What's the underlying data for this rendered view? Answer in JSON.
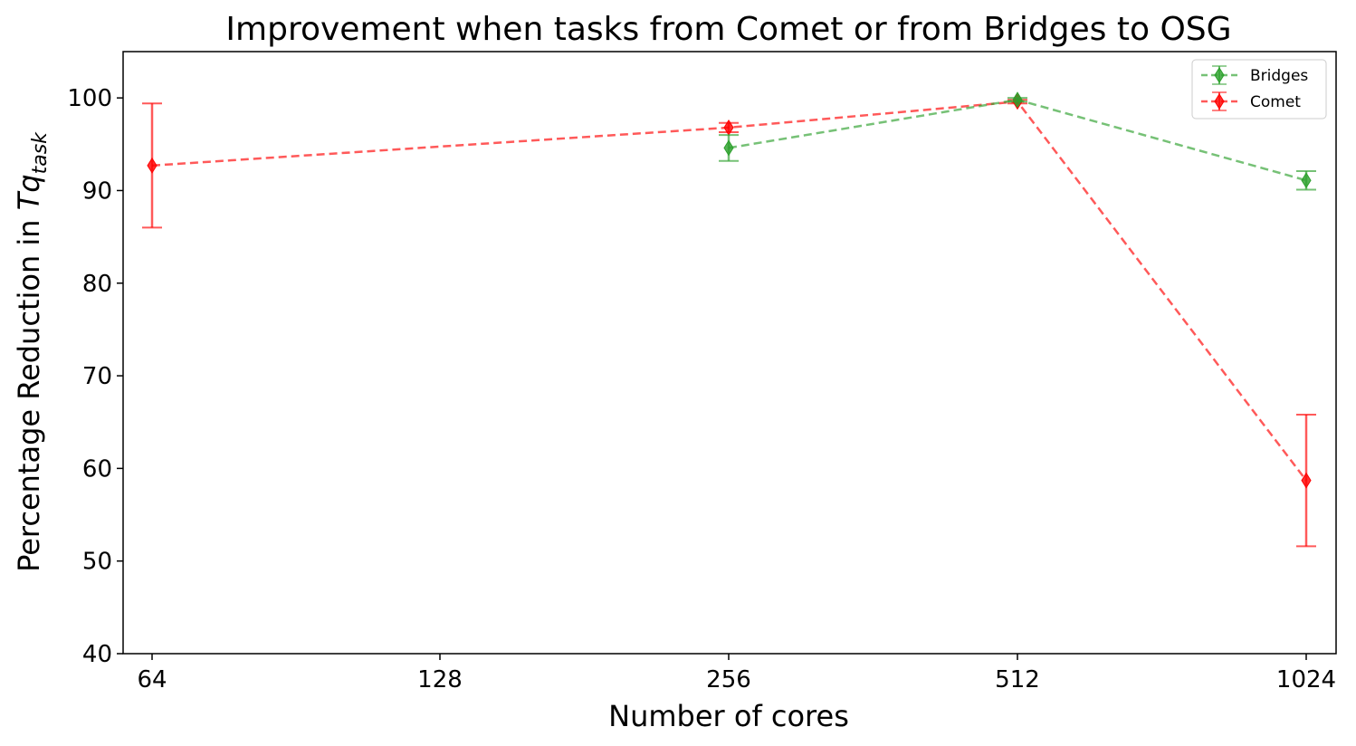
{
  "chart_data": {
    "type": "line",
    "title": "Improvement when tasks from Comet or from Bridges to OSG",
    "xlabel": "Number of cores",
    "ylabel_main": "Percentage Reduction in ",
    "ylabel_math": "Tq",
    "ylabel_sub": "task",
    "x_categories": [
      "64",
      "128",
      "256",
      "512",
      "1024"
    ],
    "ylim": [
      40,
      105
    ],
    "yticks": [
      40,
      50,
      60,
      70,
      80,
      90,
      100
    ],
    "grid": false,
    "legend_position": "top-right",
    "series": [
      {
        "name": "Bridges",
        "color": "#2ca02c",
        "line_style": "dashed",
        "marker": "thin-diamond",
        "points": [
          {
            "x": "256",
            "y": 94.6,
            "err": 1.4
          },
          {
            "x": "512",
            "y": 99.8,
            "err": 0.2
          },
          {
            "x": "1024",
            "y": 91.1,
            "err": 1.0
          }
        ]
      },
      {
        "name": "Comet",
        "color": "#ff0000",
        "line_style": "dashed",
        "marker": "thin-diamond",
        "points": [
          {
            "x": "64",
            "y": 92.7,
            "err": 6.7
          },
          {
            "x": "256",
            "y": 96.8,
            "err": 0.5
          },
          {
            "x": "512",
            "y": 99.6,
            "err": 0.2
          },
          {
            "x": "1024",
            "y": 58.7,
            "err": 7.1
          }
        ]
      }
    ]
  }
}
